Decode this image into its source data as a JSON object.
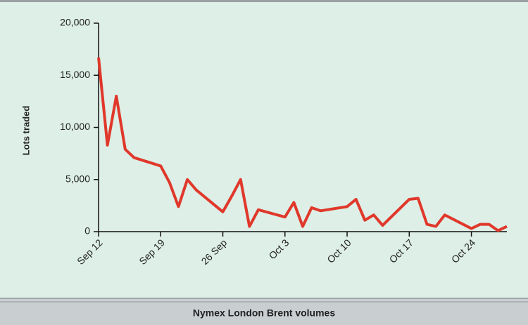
{
  "chart_data": {
    "type": "line",
    "caption": "Nymex London Brent volumes",
    "y_label": "Lots traded",
    "x": [
      "09-12",
      "09-13",
      "09-14",
      "09-15",
      "09-16",
      "09-19",
      "09-20",
      "09-21",
      "09-22",
      "09-23",
      "09-26",
      "09-27",
      "09-28",
      "09-29",
      "09-30",
      "10-03",
      "10-04",
      "10-05",
      "10-06",
      "10-07",
      "10-10",
      "10-11",
      "10-12",
      "10-13",
      "10-14",
      "10-17",
      "10-18",
      "10-19",
      "10-20",
      "10-21",
      "10-24",
      "10-25",
      "10-26",
      "10-27",
      "10-28"
    ],
    "series": [
      {
        "name": "Lots traded",
        "color": "#e0382b",
        "values": [
          16700,
          8300,
          13000,
          7900,
          7100,
          6300,
          4700,
          2400,
          5000,
          4000,
          1900,
          3400,
          5000,
          500,
          2100,
          1400,
          2800,
          500,
          2300,
          2000,
          2400,
          3100,
          1100,
          1600,
          600,
          3100,
          3200,
          700,
          500,
          1600,
          300,
          700,
          700,
          100,
          500
        ]
      }
    ],
    "xlim": [
      "09-12",
      "10-28"
    ],
    "xticks": [
      {
        "value": "09-12",
        "label": "Sep 12"
      },
      {
        "value": "09-19",
        "label": "Sep 19"
      },
      {
        "value": "09-26",
        "label": "26 Sep"
      },
      {
        "value": "10-03",
        "label": "Oct 3"
      },
      {
        "value": "10-10",
        "label": "Oct 10"
      },
      {
        "value": "10-17",
        "label": "Oct 17"
      },
      {
        "value": "10-24",
        "label": "Oct 24"
      }
    ],
    "ylim": [
      0,
      20000
    ],
    "yticks": [
      0,
      {
        "value": 5000,
        "label": "5,000"
      },
      {
        "value": 10000,
        "label": "10,000"
      },
      {
        "value": 15000,
        "label": "15,000"
      },
      {
        "value": 20000,
        "label": "20,000"
      }
    ]
  }
}
